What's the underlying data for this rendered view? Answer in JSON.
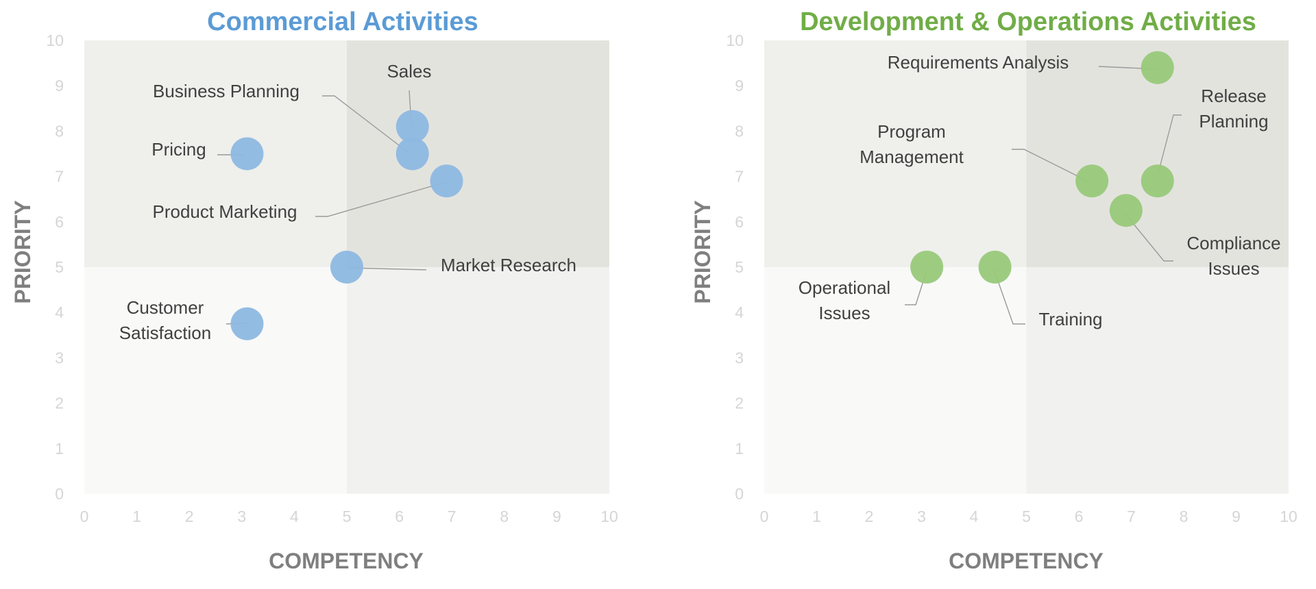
{
  "chart_data": [
    {
      "type": "scatter",
      "title": "Commercial Activities",
      "xlabel": "COMPETENCY",
      "ylabel": "PRIORITY",
      "xlim": [
        0,
        10
      ],
      "ylim": [
        0,
        10
      ],
      "xticks": [
        "0",
        "1",
        "2",
        "3",
        "4",
        "5",
        "6",
        "7",
        "8",
        "9",
        "10"
      ],
      "yticks": [
        "0",
        "1",
        "2",
        "3",
        "4",
        "5",
        "6",
        "7",
        "8",
        "9",
        "10"
      ],
      "color": "#5b9bd5",
      "marker_color": "#8db8e2",
      "background_quadrants": true,
      "points": [
        {
          "label": "Sales",
          "x": 6.25,
          "y": 8.1
        },
        {
          "label": "Business Planning",
          "x": 6.25,
          "y": 7.5
        },
        {
          "label": "Pricing",
          "x": 3.1,
          "y": 7.5
        },
        {
          "label": "Product Marketing",
          "x": 6.9,
          "y": 6.9
        },
        {
          "label": "Market Research",
          "x": 5.0,
          "y": 5.0
        },
        {
          "label": "Customer\nSatisfaction",
          "x": 3.1,
          "y": 3.75
        }
      ]
    },
    {
      "type": "scatter",
      "title": "Development & Operations Activities",
      "xlabel": "COMPETENCY",
      "ylabel": "PRIORITY",
      "xlim": [
        0,
        10
      ],
      "ylim": [
        0,
        10
      ],
      "xticks": [
        "0",
        "1",
        "2",
        "3",
        "4",
        "5",
        "6",
        "7",
        "8",
        "9",
        "10"
      ],
      "yticks": [
        "0",
        "1",
        "2",
        "3",
        "4",
        "5",
        "6",
        "7",
        "8",
        "9",
        "10"
      ],
      "color": "#70ad47",
      "marker_color": "#98c97a",
      "background_quadrants": true,
      "points": [
        {
          "label": "Requirements Analysis",
          "x": 7.5,
          "y": 9.4
        },
        {
          "label": "Release\nPlanning",
          "x": 7.5,
          "y": 6.9
        },
        {
          "label": "Program\nManagement",
          "x": 6.25,
          "y": 6.9
        },
        {
          "label": "Compliance\nIssues",
          "x": 6.9,
          "y": 6.25
        },
        {
          "label": "Operational\nIssues",
          "x": 3.1,
          "y": 5.0
        },
        {
          "label": "Training",
          "x": 4.4,
          "y": 5.0
        }
      ]
    }
  ]
}
